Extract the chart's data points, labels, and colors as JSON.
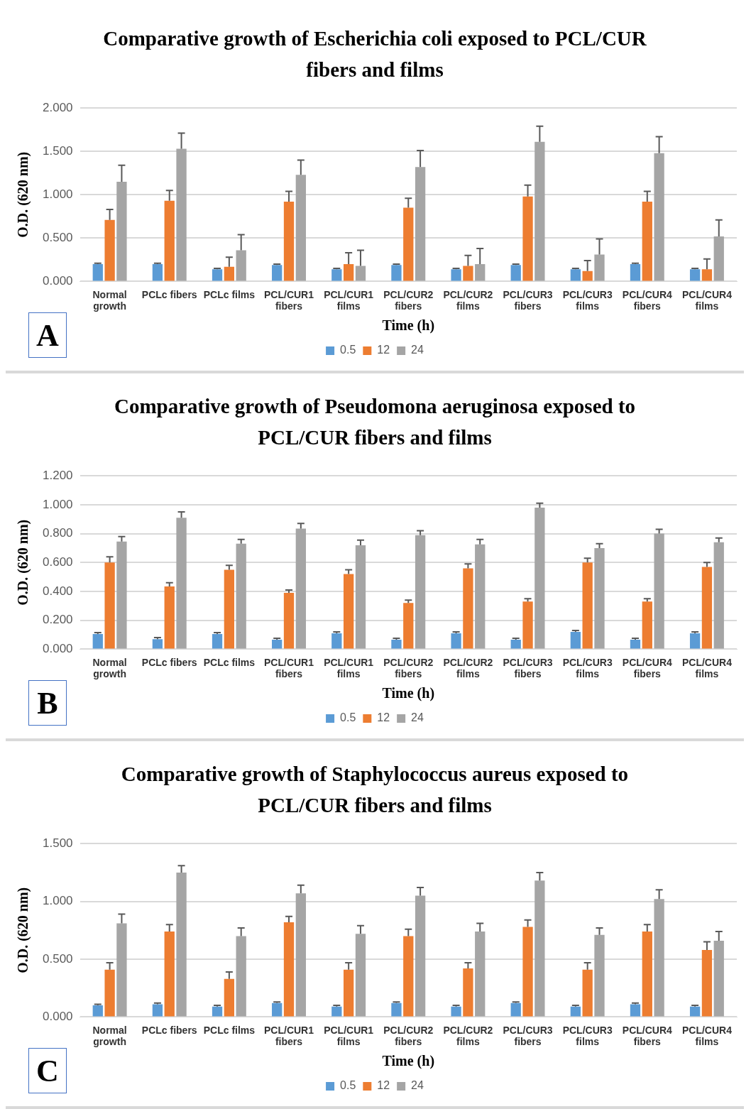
{
  "chart_data": [
    {
      "type": "bar",
      "title": "Comparative growth of Escherichia coli exposed to PCL/CUR fibers and films",
      "xlabel": "Time (h)",
      "ylabel": "O.D. (620 nm)",
      "annotations": [
        "A"
      ],
      "categories": [
        "Normal growth",
        "PCLc fibers",
        "PCLc films",
        "PCL/CUR1 fibers",
        "PCL/CUR1 films",
        "PCL/CUR2 fibers",
        "PCL/CUR2 films",
        "PCL/CUR3 fibers",
        "PCL/CUR3 films",
        "PCL/CUR4 fibers",
        "PCL/CUR4 films"
      ],
      "series": [
        {
          "name": "0.5",
          "color": "#5b9bd5",
          "values": [
            0.2,
            0.2,
            0.14,
            0.19,
            0.14,
            0.19,
            0.14,
            0.19,
            0.14,
            0.2,
            0.14
          ],
          "errors": [
            [
              0.2,
              0.21
            ],
            [
              0.2,
              0.21
            ],
            [
              0.14,
              0.15
            ],
            [
              0.19,
              0.2
            ],
            [
              0.14,
              0.15
            ],
            [
              0.19,
              0.2
            ],
            [
              0.14,
              0.15
            ],
            [
              0.19,
              0.2
            ],
            [
              0.14,
              0.15
            ],
            [
              0.2,
              0.21
            ],
            [
              0.14,
              0.15
            ]
          ]
        },
        {
          "name": "12",
          "color": "#ed7d31",
          "values": [
            0.71,
            0.93,
            0.17,
            0.92,
            0.2,
            0.85,
            0.18,
            0.98,
            0.12,
            0.92,
            0.14
          ],
          "errors": [
            [
              0.71,
              0.83
            ],
            [
              0.93,
              1.05
            ],
            [
              0.17,
              0.28
            ],
            [
              0.92,
              1.04
            ],
            [
              0.2,
              0.33
            ],
            [
              0.85,
              0.96
            ],
            [
              0.18,
              0.3
            ],
            [
              0.98,
              1.11
            ],
            [
              0.12,
              0.24
            ],
            [
              0.92,
              1.04
            ],
            [
              0.14,
              0.26
            ]
          ]
        },
        {
          "name": "24",
          "color": "#a5a5a5",
          "values": [
            1.15,
            1.53,
            0.36,
            1.23,
            0.18,
            1.32,
            0.2,
            1.61,
            0.31,
            1.48,
            0.52
          ],
          "errors": [
            [
              1.15,
              1.34
            ],
            [
              1.53,
              1.71
            ],
            [
              0.36,
              0.54
            ],
            [
              1.23,
              1.4
            ],
            [
              0.18,
              0.36
            ],
            [
              1.32,
              1.51
            ],
            [
              0.2,
              0.38
            ],
            [
              1.61,
              1.79
            ],
            [
              0.31,
              0.49
            ],
            [
              1.48,
              1.67
            ],
            [
              0.52,
              0.71
            ]
          ]
        }
      ],
      "ylim": [
        0,
        2
      ],
      "yticks": [
        {
          "value": 0,
          "label": "0.000"
        },
        {
          "value": 0.5,
          "label": "0.500"
        },
        {
          "value": 1,
          "label": "1.000"
        },
        {
          "value": 1.5,
          "label": "1.500"
        },
        {
          "value": 2,
          "label": "2.000"
        }
      ],
      "grid": "y",
      "legend": "bottom"
    },
    {
      "type": "bar",
      "title": "Comparative growth of Pseudomona aeruginosa exposed to PCL/CUR fibers and films",
      "xlabel": "Time (h)",
      "ylabel": "O.D. (620 nm)",
      "annotations": [
        "B"
      ],
      "categories": [
        "Normal growth",
        "PCLc fibers",
        "PCLc films",
        "PCL/CUR1 fibers",
        "PCL/CUR1 films",
        "PCL/CUR2 fibers",
        "PCL/CUR2 films",
        "PCL/CUR3 fibers",
        "PCL/CUR3 films",
        "PCL/CUR4 fibers",
        "PCL/CUR4 films"
      ],
      "series": [
        {
          "name": "0.5",
          "color": "#5b9bd5",
          "values": [
            0.105,
            0.07,
            0.105,
            0.066,
            0.11,
            0.066,
            0.11,
            0.066,
            0.12,
            0.066,
            0.11
          ],
          "errors": [
            [
              0.105,
              0.115
            ],
            [
              0.07,
              0.08
            ],
            [
              0.105,
              0.115
            ],
            [
              0.066,
              0.076
            ],
            [
              0.11,
              0.12
            ],
            [
              0.066,
              0.076
            ],
            [
              0.11,
              0.12
            ],
            [
              0.066,
              0.076
            ],
            [
              0.12,
              0.13
            ],
            [
              0.066,
              0.076
            ],
            [
              0.11,
              0.12
            ]
          ]
        },
        {
          "name": "12",
          "color": "#ed7d31",
          "values": [
            0.6,
            0.435,
            0.55,
            0.39,
            0.52,
            0.32,
            0.56,
            0.33,
            0.6,
            0.33,
            0.57
          ],
          "errors": [
            [
              0.6,
              0.64
            ],
            [
              0.435,
              0.46
            ],
            [
              0.55,
              0.58
            ],
            [
              0.39,
              0.41
            ],
            [
              0.52,
              0.55
            ],
            [
              0.32,
              0.34
            ],
            [
              0.56,
              0.59
            ],
            [
              0.33,
              0.35
            ],
            [
              0.6,
              0.63
            ],
            [
              0.33,
              0.35
            ],
            [
              0.57,
              0.6
            ]
          ]
        },
        {
          "name": "24",
          "color": "#a5a5a5",
          "values": [
            0.745,
            0.91,
            0.73,
            0.835,
            0.72,
            0.79,
            0.725,
            0.98,
            0.7,
            0.8,
            0.74
          ],
          "errors": [
            [
              0.745,
              0.78
            ],
            [
              0.91,
              0.95
            ],
            [
              0.73,
              0.76
            ],
            [
              0.835,
              0.87
            ],
            [
              0.72,
              0.755
            ],
            [
              0.79,
              0.82
            ],
            [
              0.725,
              0.76
            ],
            [
              0.98,
              1.01
            ],
            [
              0.7,
              0.73
            ],
            [
              0.8,
              0.83
            ],
            [
              0.74,
              0.77
            ]
          ]
        }
      ],
      "ylim": [
        0,
        1.2
      ],
      "yticks": [
        {
          "value": 0,
          "label": "0.000"
        },
        {
          "value": 0.2,
          "label": "0.200"
        },
        {
          "value": 0.4,
          "label": "0.400"
        },
        {
          "value": 0.6,
          "label": "0.600"
        },
        {
          "value": 0.8,
          "label": "0.800"
        },
        {
          "value": 1,
          "label": "1.000"
        },
        {
          "value": 1.2,
          "label": "1.200"
        }
      ],
      "grid": "y",
      "legend": "bottom"
    },
    {
      "type": "bar",
      "title": "Comparative growth of Staphylococcus aureus exposed to PCL/CUR fibers and films",
      "xlabel": "Time (h)",
      "ylabel": "O.D. (620 nm)",
      "annotations": [
        "C"
      ],
      "categories": [
        "Normal growth",
        "PCLc fibers",
        "PCLc films",
        "PCL/CUR1 fibers",
        "PCL/CUR1 films",
        "PCL/CUR2 fibers",
        "PCL/CUR2 films",
        "PCL/CUR3 fibers",
        "PCL/CUR3 films",
        "PCL/CUR4 fibers",
        "PCL/CUR4 films"
      ],
      "series": [
        {
          "name": "0.5",
          "color": "#5b9bd5",
          "values": [
            0.1,
            0.11,
            0.09,
            0.12,
            0.09,
            0.12,
            0.09,
            0.12,
            0.09,
            0.11,
            0.09
          ],
          "errors": [
            [
              0.1,
              0.11
            ],
            [
              0.11,
              0.12
            ],
            [
              0.09,
              0.1
            ],
            [
              0.12,
              0.13
            ],
            [
              0.09,
              0.1
            ],
            [
              0.12,
              0.13
            ],
            [
              0.09,
              0.1
            ],
            [
              0.12,
              0.13
            ],
            [
              0.09,
              0.1
            ],
            [
              0.11,
              0.12
            ],
            [
              0.09,
              0.1
            ]
          ]
        },
        {
          "name": "12",
          "color": "#ed7d31",
          "values": [
            0.41,
            0.74,
            0.33,
            0.82,
            0.41,
            0.7,
            0.42,
            0.78,
            0.41,
            0.74,
            0.58
          ],
          "errors": [
            [
              0.41,
              0.47
            ],
            [
              0.74,
              0.8
            ],
            [
              0.33,
              0.39
            ],
            [
              0.82,
              0.87
            ],
            [
              0.41,
              0.47
            ],
            [
              0.7,
              0.76
            ],
            [
              0.42,
              0.47
            ],
            [
              0.78,
              0.84
            ],
            [
              0.41,
              0.47
            ],
            [
              0.74,
              0.8
            ],
            [
              0.58,
              0.65
            ]
          ]
        },
        {
          "name": "24",
          "color": "#a5a5a5",
          "values": [
            0.81,
            1.25,
            0.7,
            1.07,
            0.72,
            1.05,
            0.74,
            1.18,
            0.71,
            1.02,
            0.66
          ],
          "errors": [
            [
              0.81,
              0.89
            ],
            [
              1.25,
              1.31
            ],
            [
              0.7,
              0.77
            ],
            [
              1.07,
              1.14
            ],
            [
              0.72,
              0.79
            ],
            [
              1.05,
              1.12
            ],
            [
              0.74,
              0.81
            ],
            [
              1.18,
              1.25
            ],
            [
              0.71,
              0.77
            ],
            [
              1.02,
              1.1
            ],
            [
              0.66,
              0.74
            ]
          ]
        }
      ],
      "ylim": [
        0,
        1.5
      ],
      "yticks": [
        {
          "value": 0,
          "label": "0.000"
        },
        {
          "value": 0.5,
          "label": "0.500"
        },
        {
          "value": 1,
          "label": "1.000"
        },
        {
          "value": 1.5,
          "label": "1.500"
        }
      ],
      "grid": "y",
      "legend": "bottom"
    }
  ]
}
